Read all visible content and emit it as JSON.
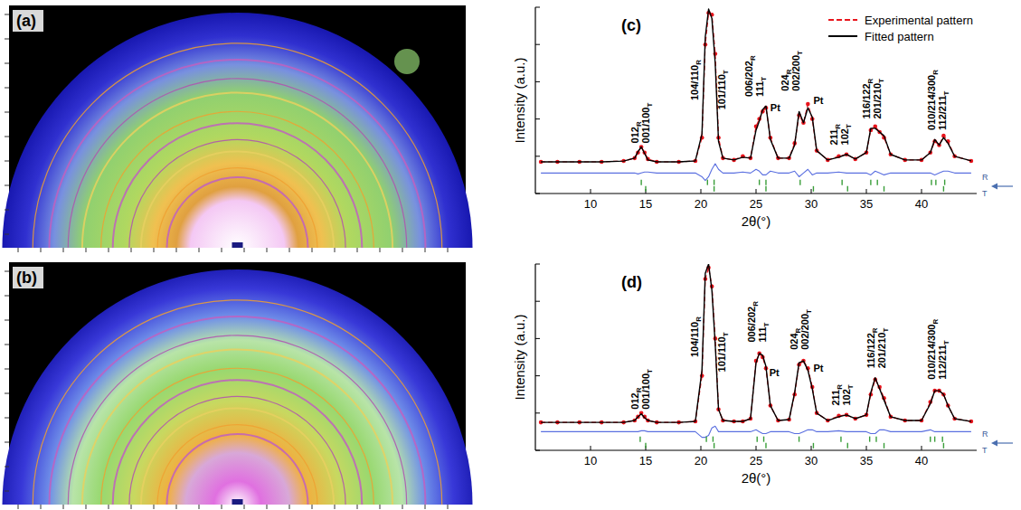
{
  "images": [
    {
      "label": "(a)"
    },
    {
      "label": "(b)"
    }
  ],
  "chart_data": [
    {
      "type": "line",
      "label": "(c)",
      "xlabel": "2θ(°)",
      "ylabel": "Intensity (a.u.)",
      "xlim": [
        5,
        45
      ],
      "xticks": [
        10,
        15,
        20,
        25,
        30,
        35,
        40
      ],
      "ylim": [
        0,
        100
      ],
      "yticks": [
        0,
        20,
        40,
        60,
        80,
        100
      ],
      "tick_labels": "x",
      "legend": "upper right",
      "x": [
        5.5,
        7,
        9,
        11,
        13,
        14,
        14.3,
        14.6,
        14.9,
        15.2,
        16,
        18,
        19.5,
        20.1,
        20.4,
        20.7,
        21.0,
        21.3,
        21.6,
        22,
        23,
        23.8,
        24.5,
        25.0,
        25.3,
        25.6,
        25.9,
        26.3,
        27,
        28,
        28.5,
        28.9,
        29.3,
        29.7,
        30.1,
        30.5,
        31.5,
        32.5,
        33.2,
        34,
        35,
        35.4,
        35.8,
        36.2,
        36.6,
        37.2,
        38.5,
        40,
        40.8,
        41.2,
        41.6,
        42.0,
        42.4,
        43,
        44.5
      ],
      "series": [
        {
          "name": "Experimental pattern",
          "color": "#e8141c",
          "marker": "circle",
          "line_style": "dashed",
          "values": [
            17,
            17,
            17,
            17,
            17.5,
            19,
            22,
            25,
            22,
            18.5,
            17,
            17,
            17.5,
            30,
            80,
            97,
            96,
            75,
            30,
            19,
            18,
            20,
            19,
            36,
            40,
            44,
            46,
            30,
            19,
            19,
            27,
            42,
            38,
            48,
            40,
            23,
            18,
            20,
            21,
            18.5,
            22,
            34,
            36,
            33,
            30,
            21,
            18,
            18,
            22,
            28,
            26,
            31,
            28,
            20,
            17.5
          ]
        },
        {
          "name": "Fitted pattern",
          "color": "#000000",
          "line_style": "solid",
          "values": [
            17,
            17,
            17,
            17,
            17.4,
            19,
            22.5,
            25,
            21.5,
            18,
            17,
            17,
            17.5,
            32,
            84,
            99,
            94,
            70,
            28,
            19,
            18,
            19.5,
            19,
            34,
            39,
            45,
            47,
            29,
            19,
            19,
            26,
            44,
            38,
            46,
            41,
            23,
            18,
            19.5,
            21,
            18.5,
            22,
            35,
            35,
            33,
            31,
            21,
            18,
            18,
            22,
            29,
            26,
            30,
            27,
            20,
            17.5
          ]
        },
        {
          "color": "#5a6fe0",
          "line_style": "solid",
          "values": [
            11,
            11,
            11,
            11,
            11,
            11,
            10.5,
            11,
            11.5,
            11.5,
            11,
            11,
            11,
            9,
            7,
            9,
            13,
            16,
            13,
            11,
            11,
            11.5,
            11,
            13,
            12,
            10,
            10,
            12,
            11,
            11,
            12,
            9,
            11,
            13,
            10,
            11,
            11,
            11.5,
            11,
            11,
            11,
            10,
            12,
            11,
            10,
            11,
            11,
            11,
            11,
            10,
            11,
            12,
            12,
            11,
            11
          ]
        },
        {
          "name": "R",
          "type": "ticks",
          "color": "#3a9e3a",
          "x": [
            14.6,
            20.6,
            21.2,
            25.3,
            25.9,
            29.0,
            32.8,
            35.4,
            36.0,
            40.9,
            41.3,
            42.1
          ],
          "values": [
            6,
            6,
            6,
            6,
            6,
            6,
            6,
            6,
            6,
            6,
            6,
            6
          ]
        },
        {
          "name": "T",
          "type": "ticks",
          "color": "#3a9e3a",
          "x": [
            15.0,
            21.2,
            25.9,
            30.2,
            33.3,
            36.6,
            42.0
          ],
          "values": [
            2.5,
            2.5,
            2.5,
            2.5,
            2.5,
            2.5,
            2.5
          ]
        }
      ],
      "annotations": [
        {
          "x": 14.6,
          "y": 27,
          "lines": [
            [
              "012",
              "R"
            ],
            [
              "001/100",
              "T"
            ]
          ]
        },
        {
          "x": 19.5,
          "y": 50,
          "lines": [
            [
              "104/110",
              "R"
            ]
          ]
        },
        {
          "x": 22.0,
          "y": 45,
          "lines": [
            [
              "101/110",
              "T"
            ]
          ]
        },
        {
          "x": 24.9,
          "y": 52,
          "lines": [
            [
              "006/202",
              "R"
            ],
            [
              "111",
              "T"
            ]
          ]
        },
        {
          "x": 26.3,
          "y": 44,
          "lines": [
            [
              "Pt"
            ]
          ]
        },
        {
          "x": 28.2,
          "y": 55,
          "lines": [
            [
              "024",
              "R"
            ],
            [
              "002/200",
              "T"
            ]
          ]
        },
        {
          "x": 30.2,
          "y": 48,
          "lines": [
            [
              "Pt"
            ]
          ]
        },
        {
          "x": 32.6,
          "y": 26,
          "lines": [
            [
              "211",
              "R"
            ],
            [
              "102",
              "T"
            ]
          ]
        },
        {
          "x": 35.6,
          "y": 40,
          "lines": [
            [
              "116/122",
              "R"
            ],
            [
              "201/210",
              "T"
            ]
          ]
        },
        {
          "x": 41.5,
          "y": 34,
          "lines": [
            [
              "010/214/300",
              "R"
            ],
            [
              "112/211",
              "T"
            ]
          ]
        }
      ]
    },
    {
      "type": "line",
      "label": "(d)",
      "xlabel": "2θ(°)",
      "ylabel": "Intensity (a.u.)",
      "xlim": [
        5,
        45
      ],
      "xticks": [
        10,
        15,
        20,
        25,
        30,
        35,
        40
      ],
      "ylim": [
        0,
        100
      ],
      "yticks": [
        0,
        20,
        40,
        60,
        80,
        100
      ],
      "tick_labels": "x",
      "x": [
        5.5,
        7,
        9,
        11,
        13,
        14,
        14.3,
        14.6,
        14.9,
        15.2,
        16,
        18,
        19.5,
        20.1,
        20.4,
        20.7,
        21.0,
        21.3,
        21.6,
        22,
        23,
        23.8,
        24.5,
        25.0,
        25.3,
        25.6,
        25.9,
        26.3,
        27,
        28,
        28.5,
        28.9,
        29.3,
        29.7,
        30.1,
        30.5,
        31.5,
        32.5,
        33.2,
        34,
        35,
        35.4,
        35.8,
        36.2,
        36.6,
        37.2,
        38.5,
        40,
        40.8,
        41.2,
        41.6,
        42.0,
        42.4,
        43,
        44.5
      ],
      "series": [
        {
          "color": "#e8141c",
          "marker": "circle",
          "line_style": "dashed",
          "values": [
            15,
            15,
            15,
            15,
            15,
            16,
            18,
            20,
            18,
            16,
            15,
            15,
            15.5,
            40,
            92,
            98,
            88,
            60,
            22,
            16,
            15.5,
            15.5,
            17,
            48,
            52,
            50,
            44,
            24,
            16,
            16.5,
            30,
            46,
            48,
            44,
            34,
            20,
            16,
            18.5,
            19,
            17,
            19,
            30,
            38,
            34,
            28,
            18,
            16,
            16,
            26,
            32,
            32,
            30,
            24,
            17,
            15.5
          ]
        },
        {
          "color": "#000000",
          "line_style": "solid",
          "values": [
            15,
            15,
            15,
            15,
            15,
            16,
            18,
            19.5,
            17.5,
            16,
            15,
            15,
            15.5,
            43,
            95,
            100,
            86,
            57,
            22,
            16,
            15.5,
            15.5,
            17,
            47,
            52,
            51,
            45,
            24,
            16,
            16.5,
            31,
            47,
            48,
            43,
            33,
            20,
            16,
            18,
            19,
            17,
            19,
            31,
            39,
            33,
            27,
            18,
            16,
            16,
            25,
            32,
            32,
            30,
            24,
            17,
            15.5
          ]
        },
        {
          "color": "#5a6fe0",
          "line_style": "solid",
          "values": [
            10,
            10,
            10,
            10,
            10,
            10,
            10,
            10.5,
            10.5,
            10,
            10,
            10,
            10,
            7,
            7,
            8,
            12,
            13,
            10,
            10,
            10,
            10,
            10,
            11,
            10,
            9,
            9,
            10,
            10,
            10,
            9,
            9,
            10,
            11,
            11,
            10,
            10,
            10.5,
            10,
            10,
            10,
            9,
            9,
            11,
            11,
            10,
            10,
            10,
            11,
            10,
            10,
            10,
            10,
            10,
            10
          ]
        },
        {
          "name": "R",
          "type": "ticks",
          "color": "#3a9e3a",
          "x": [
            14.5,
            20.5,
            21.1,
            25.1,
            25.7,
            28.9,
            32.7,
            35.3,
            35.9,
            40.8,
            41.2,
            41.9
          ],
          "values": [
            6,
            6,
            6,
            6,
            6,
            6,
            6,
            6,
            6,
            6,
            6,
            6
          ]
        },
        {
          "name": "T",
          "type": "ticks",
          "color": "#3a9e3a",
          "x": [
            15.0,
            21.2,
            25.9,
            30.2,
            33.3,
            36.6,
            42.0
          ],
          "values": [
            2.5,
            2.5,
            2.5,
            2.5,
            2.5,
            2.5,
            2.5
          ]
        }
      ],
      "annotations": [
        {
          "x": 14.6,
          "y": 22,
          "lines": [
            [
              "012",
              "R"
            ],
            [
              "001/100",
              "T"
            ]
          ]
        },
        {
          "x": 19.5,
          "y": 50,
          "lines": [
            [
              "104/110",
              "R"
            ]
          ]
        },
        {
          "x": 22.0,
          "y": 42,
          "lines": [
            [
              "101/110",
              "T"
            ]
          ]
        },
        {
          "x": 25.2,
          "y": 58,
          "lines": [
            [
              "006/202",
              "R"
            ],
            [
              "111",
              "T"
            ]
          ]
        },
        {
          "x": 26.2,
          "y": 40,
          "lines": [
            [
              "Pt"
            ]
          ]
        },
        {
          "x": 29.0,
          "y": 54,
          "lines": [
            [
              "024",
              "R"
            ],
            [
              "002/200",
              "T"
            ]
          ]
        },
        {
          "x": 30.2,
          "y": 42,
          "lines": [
            [
              "Pt"
            ]
          ]
        },
        {
          "x": 32.8,
          "y": 24,
          "lines": [
            [
              "211",
              "R"
            ],
            [
              "102",
              "T"
            ]
          ]
        },
        {
          "x": 36.0,
          "y": 44,
          "lines": [
            [
              "116/122",
              "R"
            ],
            [
              "201/210",
              "T"
            ]
          ]
        },
        {
          "x": 41.5,
          "y": 38,
          "lines": [
            [
              "010/214/300",
              "R"
            ],
            [
              "112/211",
              "T"
            ]
          ]
        }
      ]
    }
  ]
}
